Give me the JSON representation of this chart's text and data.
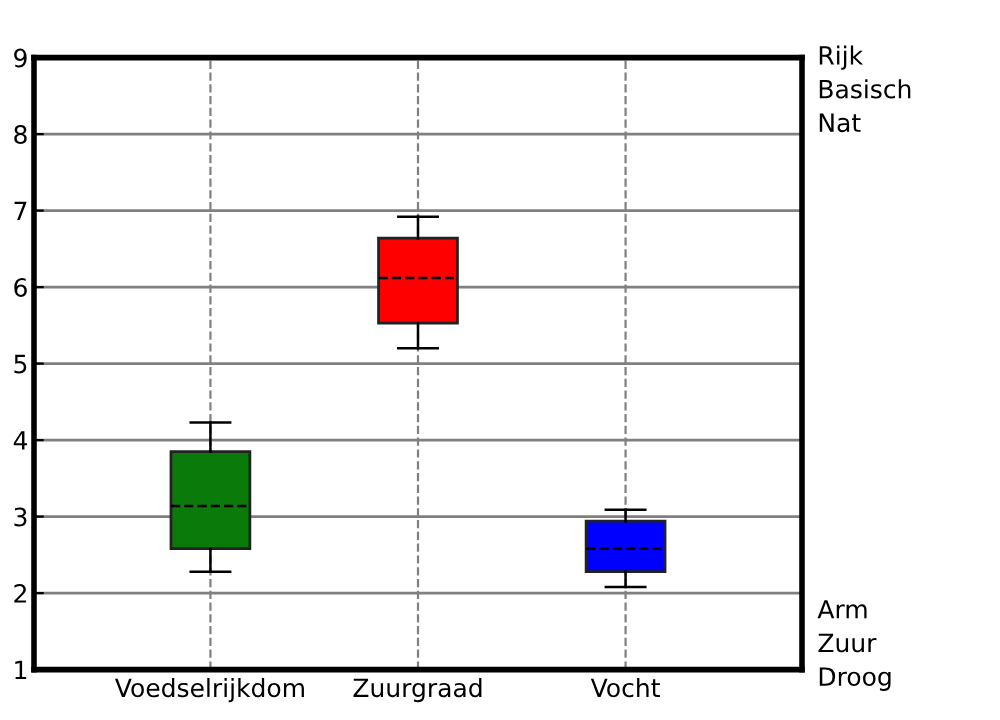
{
  "chart_data": {
    "type": "box",
    "categories": [
      "Voedselrijkdom",
      "Zuurgraad",
      "Vocht"
    ],
    "boxes": [
      {
        "low": 2.28,
        "q1": 2.58,
        "median": 3.14,
        "q3": 3.85,
        "high": 4.23
      },
      {
        "low": 5.2,
        "q1": 5.53,
        "median": 6.12,
        "q3": 6.64,
        "high": 6.92
      },
      {
        "low": 2.08,
        "q1": 2.28,
        "median": 2.58,
        "q3": 2.94,
        "high": 3.09
      }
    ],
    "colors": [
      "#0a7a0a",
      "#ff0000",
      "#0000ff"
    ],
    "ylim": [
      1,
      9
    ],
    "yticks": [
      1,
      2,
      3,
      4,
      5,
      6,
      7,
      8,
      9
    ],
    "grid": true,
    "annotations": [
      "Rijk",
      "Basisch",
      "Nat",
      "Arm",
      "Zuur",
      "Droog"
    ]
  }
}
